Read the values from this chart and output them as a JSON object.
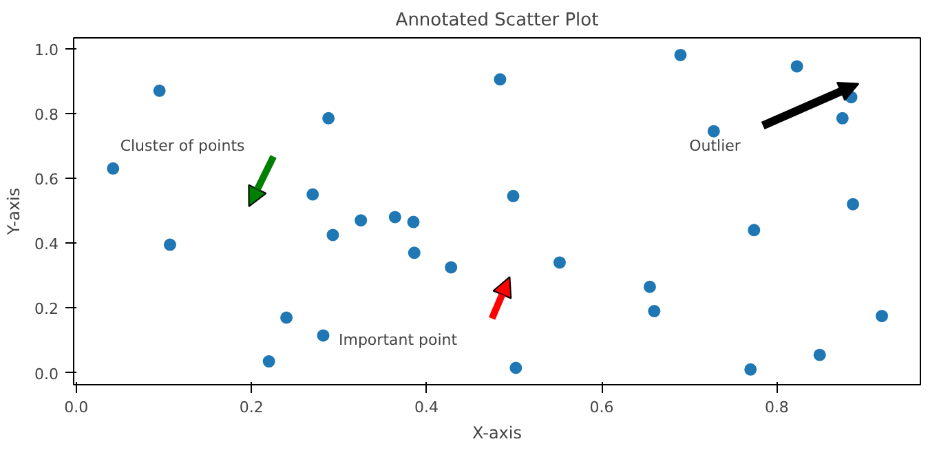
{
  "chart_data": {
    "type": "scatter",
    "title": "Annotated Scatter Plot",
    "xlabel": "X-axis",
    "ylabel": "Y-axis",
    "x": [
      0.042,
      0.095,
      0.107,
      0.22,
      0.24,
      0.27,
      0.282,
      0.288,
      0.293,
      0.325,
      0.364,
      0.385,
      0.386,
      0.428,
      0.484,
      0.499,
      0.502,
      0.552,
      0.655,
      0.66,
      0.69,
      0.728,
      0.77,
      0.774,
      0.823,
      0.849,
      0.875,
      0.885,
      0.887,
      0.92
    ],
    "values": [
      0.63,
      0.87,
      0.395,
      0.035,
      0.17,
      0.55,
      0.115,
      0.785,
      0.425,
      0.47,
      0.48,
      0.465,
      0.37,
      0.325,
      0.905,
      0.545,
      0.015,
      0.34,
      0.265,
      0.19,
      0.98,
      0.745,
      0.01,
      0.44,
      0.945,
      0.055,
      0.785,
      0.85,
      0.52,
      0.175
    ],
    "color": "#1f77b4",
    "marker": "circle",
    "xlim": [
      -0.003,
      0.964
    ],
    "ylim": [
      -0.037,
      1.033
    ],
    "xticks": [
      {
        "value": 0,
        "label": "0.0"
      },
      0.2,
      0.4,
      0.6,
      0.8
    ],
    "yticks": [
      {
        "value": 0,
        "label": "0.0"
      },
      0.2,
      0.4,
      0.6,
      0.8,
      {
        "value": 1,
        "label": "1.0"
      }
    ],
    "grid": false,
    "annotations": [
      "Cluster of points",
      "Important point",
      "Outlier"
    ]
  }
}
